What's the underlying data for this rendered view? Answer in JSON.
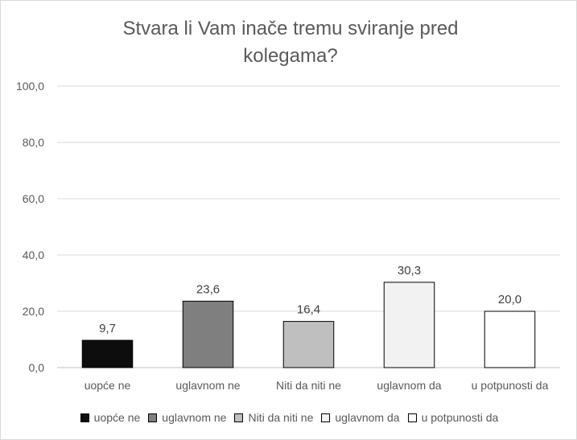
{
  "chart_data": {
    "type": "bar",
    "title": "Stvara li Vam inače tremu sviranje pred\nkolegama?",
    "categories": [
      "uopće ne",
      "uglavnom ne",
      "Niti da niti ne",
      "uglavnom da",
      "u potpunosti da"
    ],
    "values": [
      9.7,
      23.6,
      16.4,
      30.3,
      20.0
    ],
    "value_labels": [
      "9,7",
      "23,6",
      "16,4",
      "30,3",
      "20,0"
    ],
    "colors": [
      "#0d0d0d",
      "#7f7f7f",
      "#bfbfbf",
      "#f2f2f2",
      "#ffffff"
    ],
    "ylim": [
      0,
      100
    ],
    "yticks": [
      0,
      20,
      40,
      60,
      80,
      100
    ],
    "ytick_labels": [
      "0,0",
      "20,0",
      "40,0",
      "60,0",
      "80,0",
      "100,0"
    ],
    "grid": true,
    "legend": {
      "position": "bottom",
      "entries": [
        "uopće ne",
        "uglavnom ne",
        "Niti da niti ne",
        "uglavnom da",
        "u potpunosti da"
      ]
    },
    "xlabel": "",
    "ylabel": ""
  }
}
